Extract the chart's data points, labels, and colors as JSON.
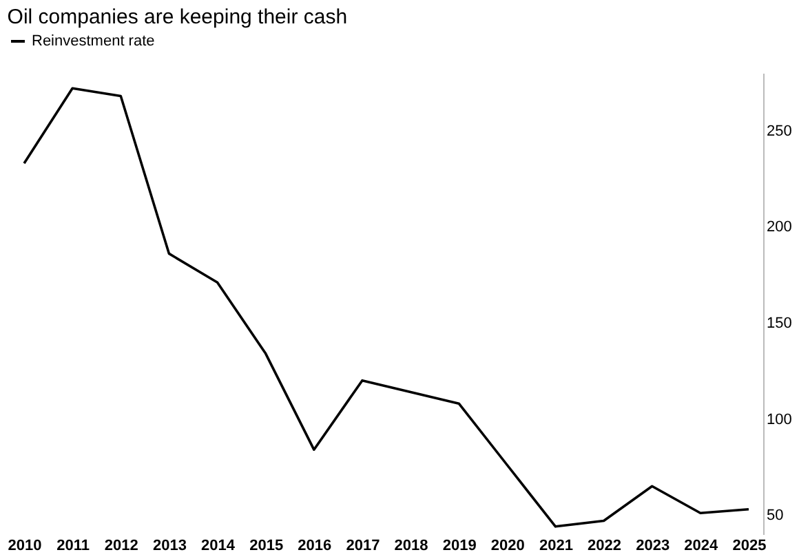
{
  "chart_data": {
    "type": "line",
    "title": "Oil companies are keeping their cash",
    "categories": [
      "2010",
      "2011",
      "2012",
      "2013",
      "2014",
      "2015",
      "2016",
      "2017",
      "2018",
      "2019",
      "2020",
      "2021",
      "2022",
      "2023",
      "2024",
      "2025"
    ],
    "series": [
      {
        "name": "Reinvestment rate",
        "color": "#000000",
        "values": [
          233,
          272,
          268,
          186,
          171,
          134,
          84,
          120,
          114,
          108,
          76,
          44,
          47,
          65,
          51,
          53
        ]
      }
    ],
    "ylim": [
      40,
      280
    ],
    "yticks": [
      50,
      100,
      150,
      200,
      250
    ],
    "grid": false,
    "legend": "top left",
    "marker": "none",
    "line_style": "solid"
  }
}
